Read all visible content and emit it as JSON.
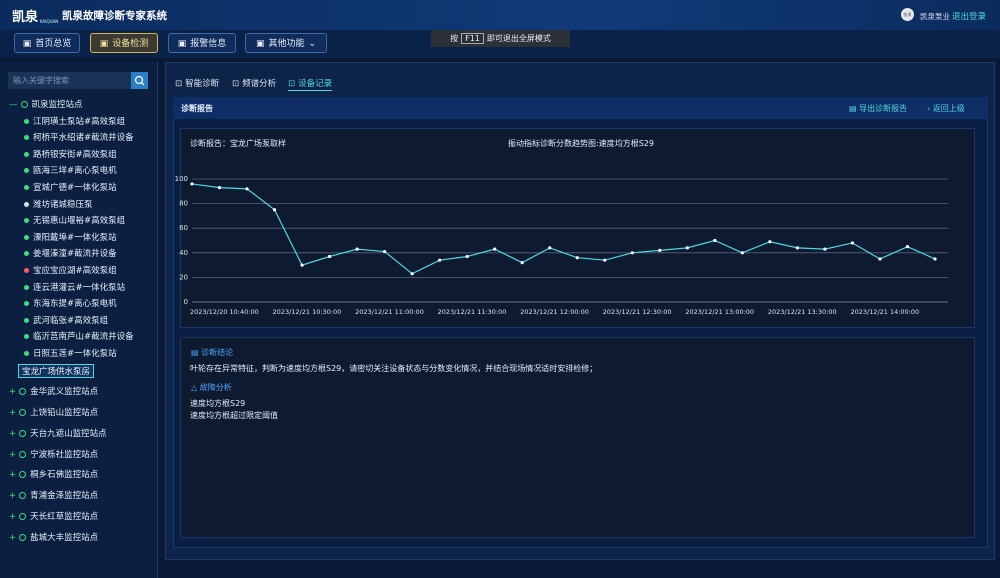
{
  "header": {
    "logo": "凯泉",
    "logo_sub": "KAIQUAN",
    "title": "凯泉故障诊断专家系统",
    "avatar": "凯泉",
    "company": "凯泉泵业",
    "logout": "退出登录"
  },
  "nav": {
    "items": [
      "首页总览",
      "设备检测",
      "报警信息",
      "其他功能"
    ],
    "active": 1
  },
  "fullscreen_tip": {
    "before": "按",
    "key": "F11",
    "after": "即可退出全屏模式"
  },
  "sidebar": {
    "search_placeholder": "输入关键字搜索",
    "tree": [
      {
        "label": "凯泉监控站点",
        "expanded": true,
        "children": [
          {
            "label": "江阴璜土泵站#高效泵组",
            "color": "#3ddc84"
          },
          {
            "label": "柯桥平水绍诸#截流井设备",
            "color": "#3ddc84"
          },
          {
            "label": "路桥银安街#高效泵组",
            "color": "#3ddc84"
          },
          {
            "label": "瓯海三垟#离心泵电机",
            "color": "#3ddc84"
          },
          {
            "label": "宣城广德#一体化泵站",
            "color": "#3ddc84"
          },
          {
            "label": "潍坊诸城稳压泵",
            "color": "#d8dde6"
          },
          {
            "label": "无锡惠山堰裕#高效泵组",
            "color": "#3ddc84"
          },
          {
            "label": "溧阳戴埠#一体化泵站",
            "color": "#3ddc84"
          },
          {
            "label": "姜堰溱潼#截流井设备",
            "color": "#3ddc84"
          },
          {
            "label": "宝应宝应湖#高效泵组",
            "color": "#ff5a5a"
          },
          {
            "label": "连云港灌云#一体化泵站",
            "color": "#3ddc84"
          },
          {
            "label": "东海东提#离心泵电机",
            "color": "#3ddc84"
          },
          {
            "label": "武河临张#高效泵组",
            "color": "#3ddc84"
          },
          {
            "label": "临沂莒南芦山#截流井设备",
            "color": "#3ddc84"
          },
          {
            "label": "日照五莲#一体化泵站",
            "color": "#3ddc84"
          },
          {
            "label": "宝龙广场供水泵房",
            "selected": true
          }
        ]
      },
      {
        "label": "金华武义监控站点",
        "expanded": false
      },
      {
        "label": "上饶铅山监控站点",
        "expanded": false
      },
      {
        "label": "天台九遮山监控站点",
        "expanded": false
      },
      {
        "label": "宁波栎社监控站点",
        "expanded": false
      },
      {
        "label": "桐乡石佛监控站点",
        "expanded": false
      },
      {
        "label": "青浦金泽监控站点",
        "expanded": false
      },
      {
        "label": "天长红草监控站点",
        "expanded": false
      },
      {
        "label": "盐城大丰监控站点",
        "expanded": false
      }
    ]
  },
  "tabs": {
    "items": [
      "智能诊断",
      "频谱分析",
      "设备记录"
    ],
    "active": 2
  },
  "report": {
    "title": "诊断报告",
    "export": "导出诊断报告",
    "back": "返回上级",
    "sample": "诊断报告：宝龙广场泵取样"
  },
  "chart_data": {
    "type": "line",
    "title": "振动指标诊断分数趋势图:速度均方根S29",
    "categories": [
      "2023/12/20 10:40:00",
      null,
      null,
      "2023/12/21 10:30:00",
      null,
      null,
      "2023/12/21 11:00:00",
      null,
      null,
      "2023/12/21 11:30:00",
      null,
      null,
      "2023/12/21 12:00:00",
      null,
      null,
      "2023/12/21 12:30:00",
      null,
      null,
      "2023/12/21 13:00:00",
      null,
      null,
      "2023/12/21 13:30:00",
      null,
      null,
      "2023/12/21 14:00:00",
      null,
      null,
      null
    ],
    "values": [
      96,
      93,
      92,
      75,
      30,
      37,
      43,
      41,
      23,
      34,
      37,
      43,
      32,
      44,
      36,
      34,
      40,
      42,
      44,
      50,
      40,
      49,
      44,
      43,
      48,
      35,
      45,
      35
    ],
    "color": "#4fd8e0",
    "ylim": [
      0,
      100
    ],
    "yticks": [
      0,
      20,
      40,
      60,
      80,
      100
    ],
    "grid": true
  },
  "conclusion": {
    "title": "诊断结论",
    "text": "叶轮存在异常特征，判断为速度均方根S29，请密切关注设备状态与分数变化情况，并结合现场情况适时安排检修；",
    "analysis_title": "故障分析",
    "analysis": [
      "速度均方根S29",
      "速度均方根超过限定阈值"
    ]
  }
}
